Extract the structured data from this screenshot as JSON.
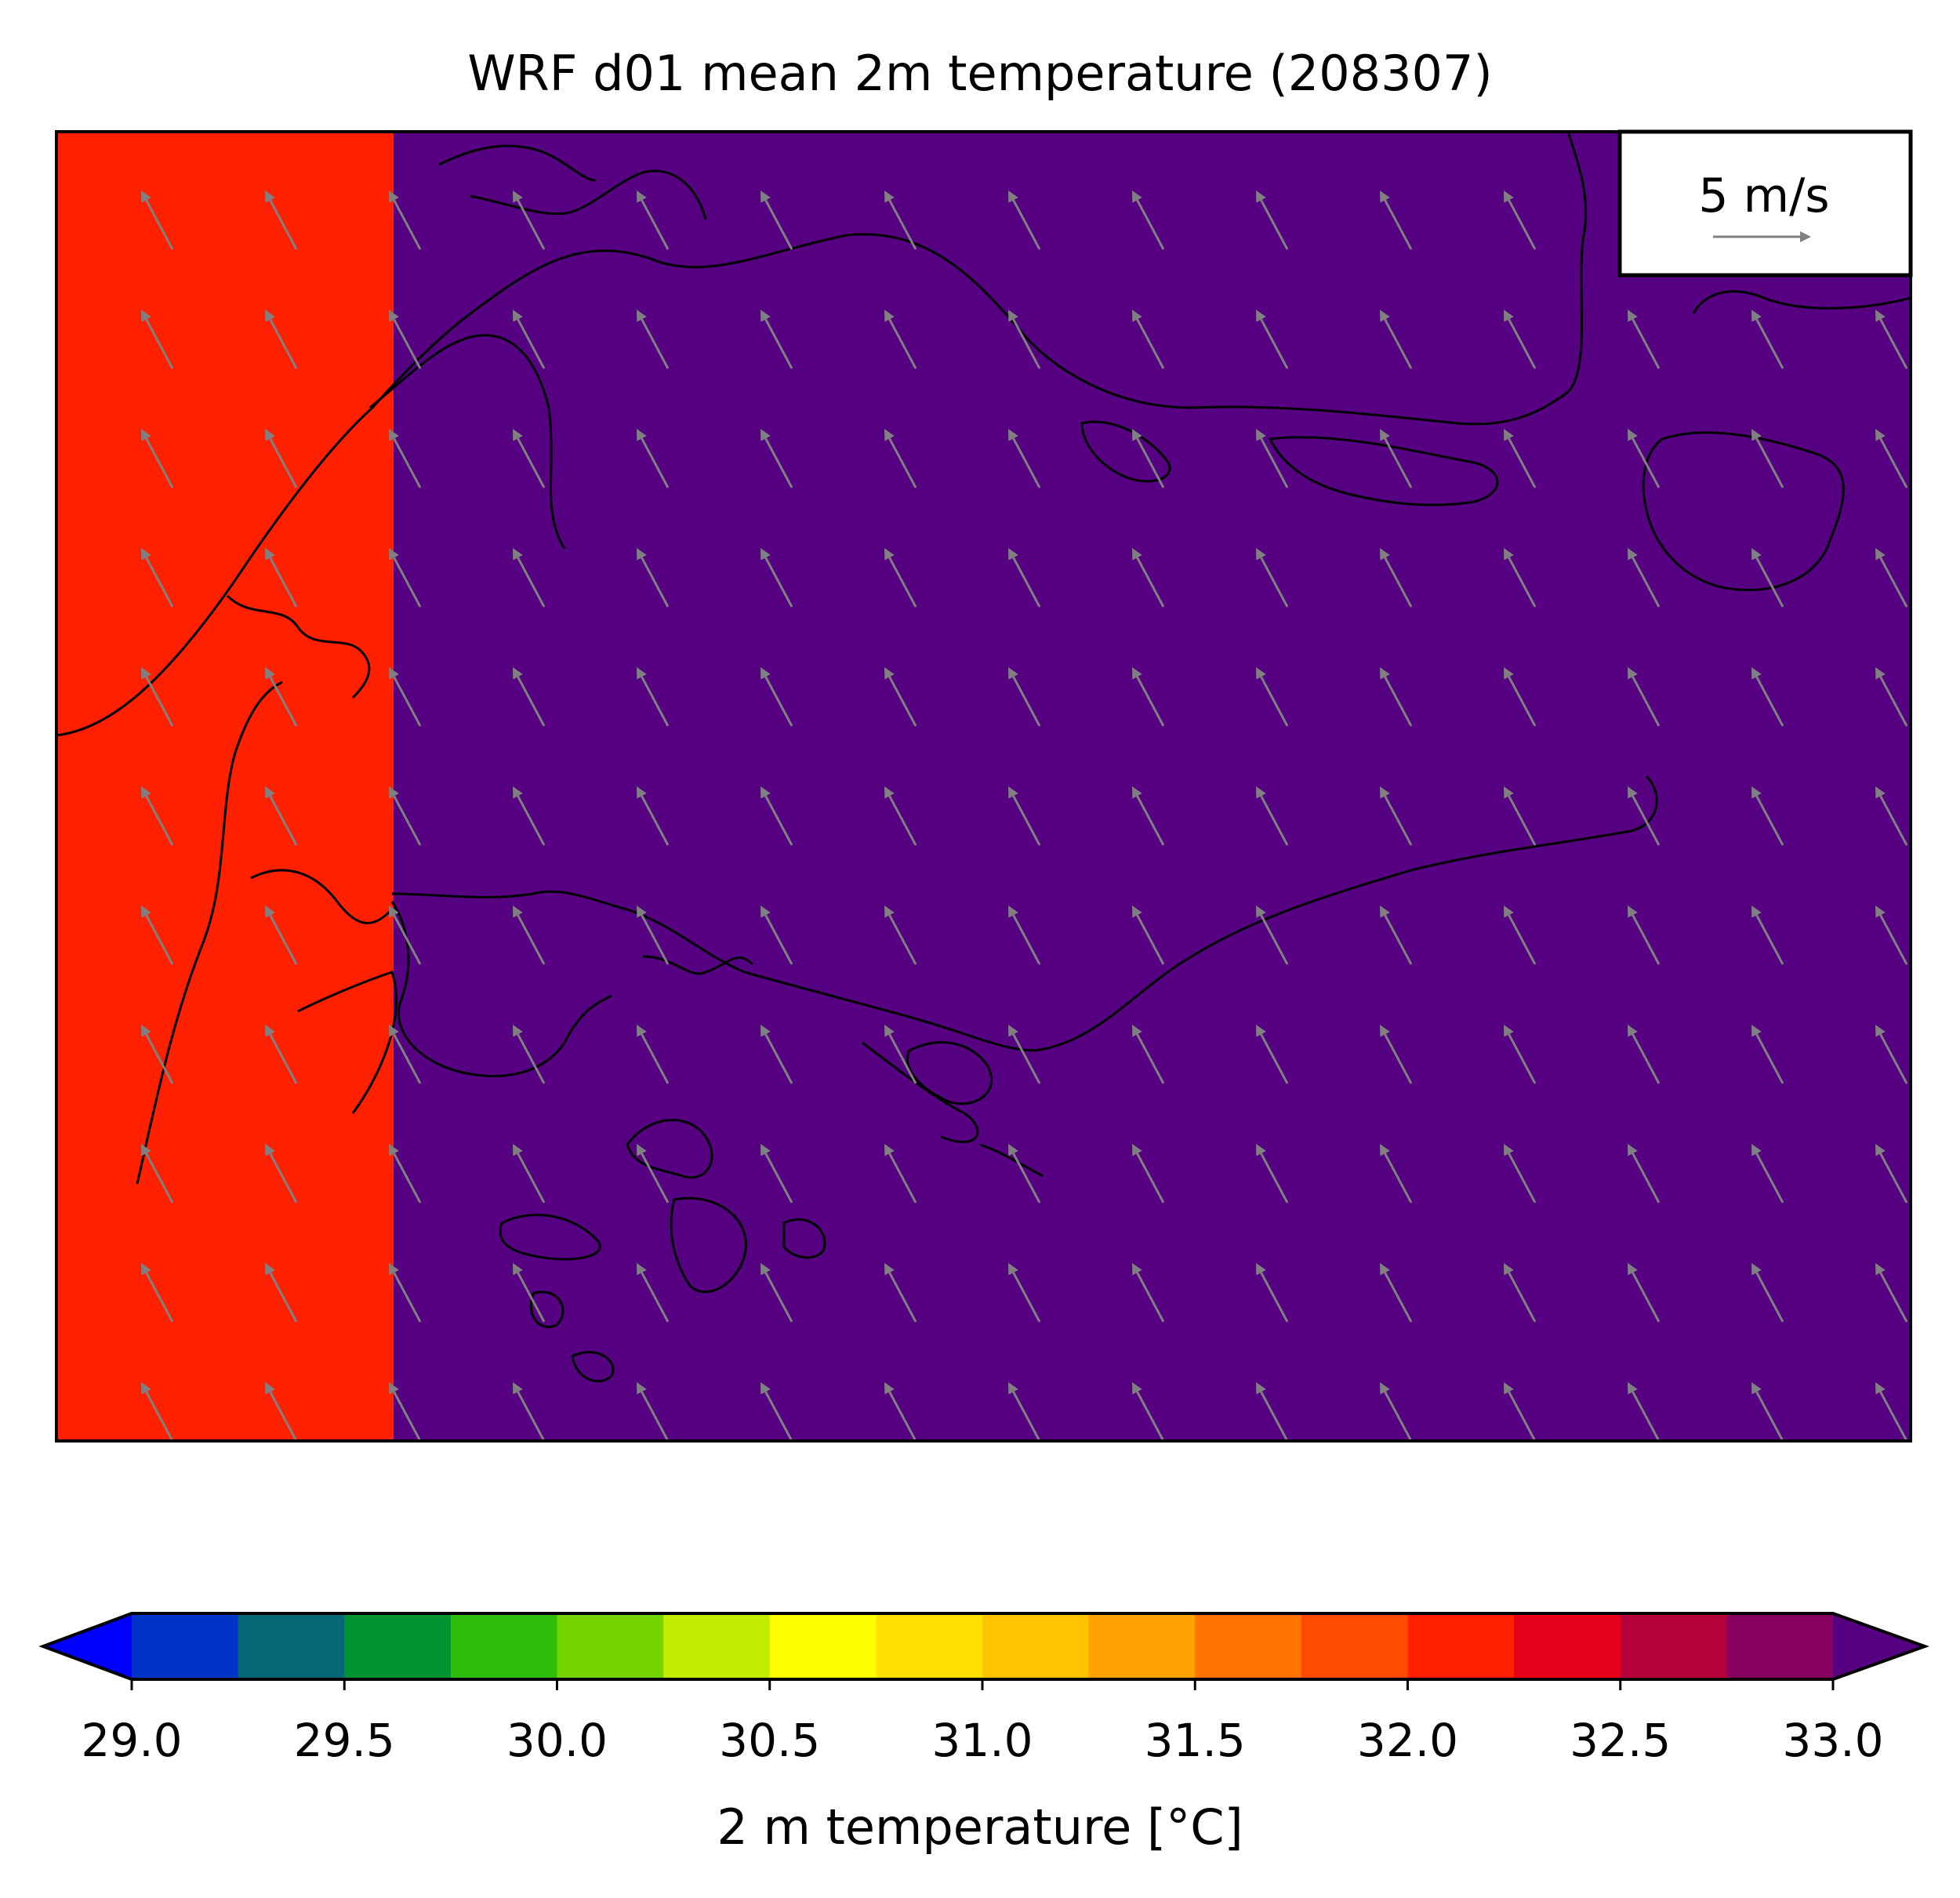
{
  "title": "WRF d01 mean 2m temperature (208307)",
  "chart_data": {
    "type": "heatmap",
    "title": "WRF d01 mean 2m temperature (208307)",
    "grid": false,
    "cells": [
      {
        "column": "west",
        "value": 32.1,
        "color": "#ff2000"
      },
      {
        "column": "east",
        "value": 33.2,
        "color": "#560082"
      }
    ],
    "wind": {
      "direction": "from south-east toward north-north-west",
      "u_ms": -1.6,
      "v_ms": 3.0,
      "color": "#808080"
    },
    "quiver_key": {
      "label": "5 m/s",
      "value_ms": 5,
      "placement": "top-right"
    },
    "colorbar": {
      "label": "2 m temperature [°C]",
      "min": 29.0,
      "max": 33.0,
      "step": 0.25,
      "extend": "both",
      "ticks": [
        "29.0",
        "29.5",
        "30.0",
        "30.5",
        "31.0",
        "31.5",
        "32.0",
        "32.5",
        "33.0"
      ],
      "under_color": "#0000ff",
      "over_color": "#560082",
      "colors": [
        "#0033c8",
        "#066775",
        "#009530",
        "#2dbe0a",
        "#74d400",
        "#c0ec00",
        "#ffff00",
        "#ffe000",
        "#ffc300",
        "#ffa100",
        "#ff7400",
        "#ff4b00",
        "#ff2000",
        "#e6001a",
        "#b5003a",
        "#89005e"
      ]
    }
  }
}
